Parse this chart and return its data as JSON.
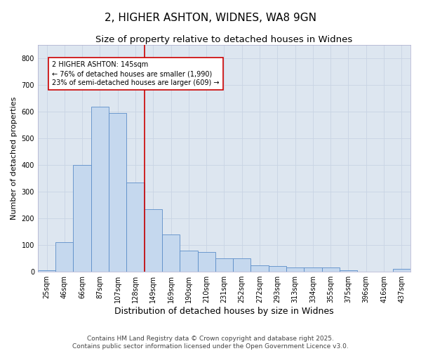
{
  "title": "2, HIGHER ASHTON, WIDNES, WA8 9GN",
  "subtitle": "Size of property relative to detached houses in Widnes",
  "xlabel": "Distribution of detached houses by size in Widnes",
  "ylabel": "Number of detached properties",
  "categories": [
    "25sqm",
    "46sqm",
    "66sqm",
    "87sqm",
    "107sqm",
    "128sqm",
    "149sqm",
    "169sqm",
    "190sqm",
    "210sqm",
    "231sqm",
    "252sqm",
    "272sqm",
    "293sqm",
    "313sqm",
    "334sqm",
    "355sqm",
    "375sqm",
    "396sqm",
    "416sqm",
    "437sqm"
  ],
  "values": [
    5,
    110,
    400,
    620,
    595,
    335,
    235,
    140,
    80,
    75,
    50,
    50,
    25,
    20,
    15,
    15,
    15,
    5,
    0,
    0,
    10
  ],
  "bar_color": "#c5d8ee",
  "bar_edge_color": "#5b8dc8",
  "bar_linewidth": 0.6,
  "marker_line_at_index": 6,
  "marker_label_line1": "2 HIGHER ASHTON: 145sqm",
  "marker_label_line2": "← 76% of detached houses are smaller (1,990)",
  "marker_label_line3": "23% of semi-detached houses are larger (609) →",
  "marker_color": "#cc0000",
  "ylim": [
    0,
    850
  ],
  "yticks": [
    0,
    100,
    200,
    300,
    400,
    500,
    600,
    700,
    800
  ],
  "grid_color": "#c8d4e4",
  "bg_color": "#dde6f0",
  "footnote": "Contains HM Land Registry data © Crown copyright and database right 2025.\nContains public sector information licensed under the Open Government Licence v3.0.",
  "title_fontsize": 11,
  "subtitle_fontsize": 9.5,
  "xlabel_fontsize": 9,
  "ylabel_fontsize": 8,
  "tick_fontsize": 7,
  "footnote_fontsize": 6.5,
  "annotation_fontsize": 7
}
